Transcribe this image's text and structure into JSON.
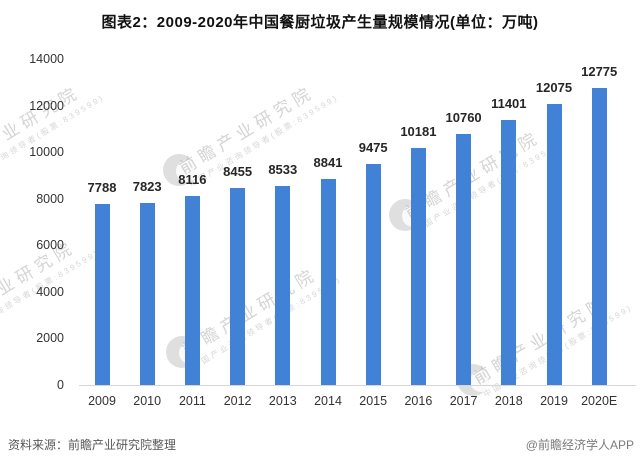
{
  "title": "图表2：2009-2020年中国餐厨垃圾产生量规模情况(单位：万吨)",
  "footer": {
    "source": "资料来源：前瞻产业研究院整理",
    "credit": "@前瞻经济学人APP"
  },
  "watermark": {
    "main": "前瞻产业研究院",
    "sub": "中国产业咨询领导者(股票:839599)"
  },
  "chart_data": {
    "type": "bar",
    "title": "图表2：2009-2020年中国餐厨垃圾产生量规模情况(单位：万吨)",
    "unit": "万吨",
    "categories": [
      "2009",
      "2010",
      "2011",
      "2012",
      "2013",
      "2014",
      "2015",
      "2016",
      "2017",
      "2018",
      "2019",
      "2020E"
    ],
    "values": [
      7788,
      7823,
      8116,
      8455,
      8533,
      8841,
      9475,
      10181,
      10760,
      11401,
      12075,
      12775
    ],
    "data_labels": [
      7788,
      7823,
      8116,
      8455,
      8533,
      8841,
      9475,
      10181,
      10760,
      11401,
      12075,
      12775
    ],
    "xlabel": "",
    "ylabel": "",
    "ylim": [
      0,
      14000
    ],
    "yticks": [
      0,
      2000,
      4000,
      6000,
      8000,
      10000,
      12000,
      14000
    ],
    "grid": false,
    "legend": false,
    "bar_color": "#4282d6"
  }
}
